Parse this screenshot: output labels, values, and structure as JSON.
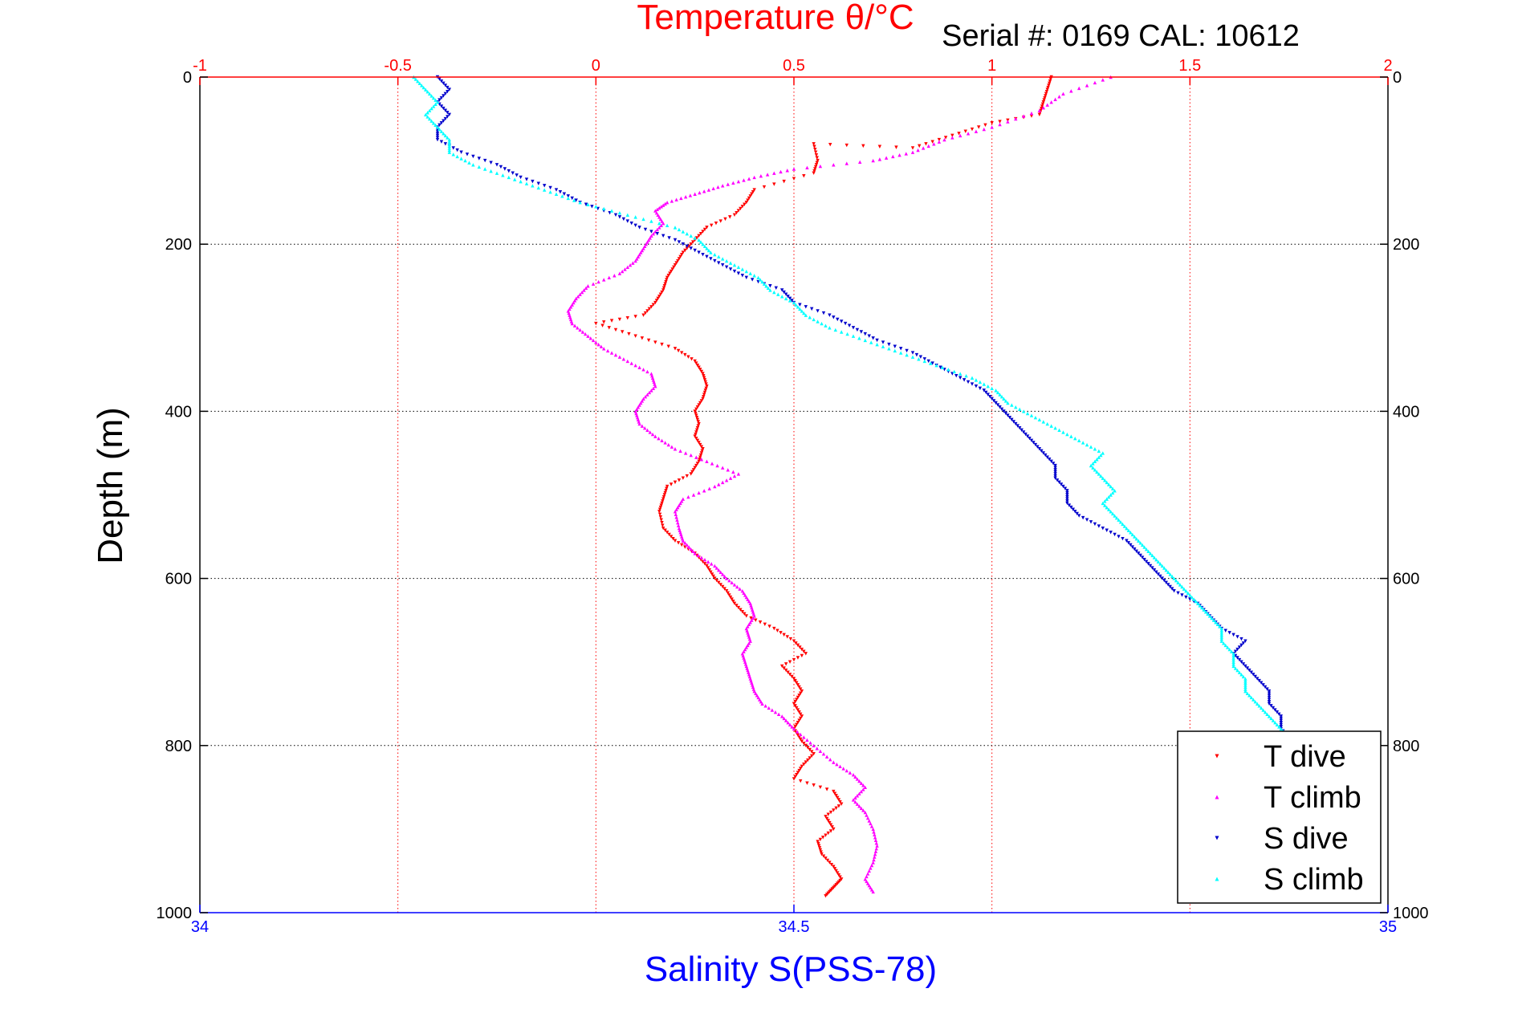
{
  "chart_data": {
    "type": "scatter",
    "serial_label": "Serial #: 0169 CAL: 10612",
    "title_top": "Temperature θ/°C",
    "xlabel_bottom": "Salinity S(PSS-78)",
    "ylabel": "Depth (m)",
    "x_top": {
      "range": [
        -1,
        2
      ],
      "ticks": [
        "-1",
        "-0.5",
        "0",
        "0.5",
        "1",
        "1.5",
        "2"
      ],
      "color": "#ff0000"
    },
    "x_bottom": {
      "range": [
        34,
        35
      ],
      "ticks": [
        "34",
        "34.5",
        "35"
      ],
      "color": "#0000ff"
    },
    "y": {
      "range": [
        0,
        1000
      ],
      "reversed": true,
      "ticks": [
        "0",
        "200",
        "400",
        "600",
        "800",
        "1000"
      ]
    },
    "grid": true,
    "legend_position": "bottom-right",
    "series": [
      {
        "name": "T dive",
        "color": "#ff0000",
        "marker": "triangle-down",
        "axis": "temperature",
        "points": [
          [
            1.15,
            0
          ],
          [
            1.14,
            15
          ],
          [
            1.13,
            30
          ],
          [
            1.12,
            45
          ],
          [
            1.0,
            55
          ],
          [
            0.9,
            70
          ],
          [
            0.8,
            85
          ],
          [
            0.55,
            80
          ],
          [
            0.56,
            100
          ],
          [
            0.55,
            115
          ],
          [
            0.4,
            135
          ],
          [
            0.38,
            150
          ],
          [
            0.35,
            165
          ],
          [
            0.28,
            180
          ],
          [
            0.25,
            195
          ],
          [
            0.22,
            210
          ],
          [
            0.2,
            225
          ],
          [
            0.18,
            240
          ],
          [
            0.17,
            255
          ],
          [
            0.15,
            270
          ],
          [
            0.12,
            285
          ],
          [
            0.0,
            295
          ],
          [
            0.1,
            310
          ],
          [
            0.2,
            325
          ],
          [
            0.25,
            340
          ],
          [
            0.27,
            355
          ],
          [
            0.28,
            370
          ],
          [
            0.27,
            385
          ],
          [
            0.25,
            400
          ],
          [
            0.26,
            415
          ],
          [
            0.25,
            430
          ],
          [
            0.27,
            445
          ],
          [
            0.26,
            460
          ],
          [
            0.24,
            475
          ],
          [
            0.18,
            490
          ],
          [
            0.17,
            505
          ],
          [
            0.16,
            520
          ],
          [
            0.17,
            540
          ],
          [
            0.2,
            555
          ],
          [
            0.25,
            570
          ],
          [
            0.28,
            585
          ],
          [
            0.3,
            600
          ],
          [
            0.33,
            615
          ],
          [
            0.35,
            630
          ],
          [
            0.38,
            645
          ],
          [
            0.45,
            660
          ],
          [
            0.5,
            675
          ],
          [
            0.53,
            690
          ],
          [
            0.47,
            705
          ],
          [
            0.5,
            720
          ],
          [
            0.52,
            735
          ],
          [
            0.5,
            750
          ],
          [
            0.52,
            765
          ],
          [
            0.5,
            780
          ],
          [
            0.52,
            795
          ],
          [
            0.55,
            810
          ],
          [
            0.52,
            825
          ],
          [
            0.5,
            840
          ],
          [
            0.6,
            855
          ],
          [
            0.62,
            870
          ],
          [
            0.58,
            885
          ],
          [
            0.6,
            900
          ],
          [
            0.56,
            915
          ],
          [
            0.57,
            930
          ],
          [
            0.6,
            945
          ],
          [
            0.62,
            960
          ],
          [
            0.6,
            970
          ],
          [
            0.58,
            980
          ]
        ]
      },
      {
        "name": "T climb",
        "color": "#ff00ff",
        "marker": "triangle-up",
        "axis": "temperature",
        "points": [
          [
            1.3,
            0
          ],
          [
            1.18,
            20
          ],
          [
            1.12,
            40
          ],
          [
            1.0,
            60
          ],
          [
            0.88,
            75
          ],
          [
            0.8,
            90
          ],
          [
            0.7,
            100
          ],
          [
            0.5,
            110
          ],
          [
            0.4,
            120
          ],
          [
            0.32,
            130
          ],
          [
            0.25,
            140
          ],
          [
            0.18,
            150
          ],
          [
            0.15,
            160
          ],
          [
            0.17,
            175
          ],
          [
            0.14,
            190
          ],
          [
            0.12,
            205
          ],
          [
            0.1,
            220
          ],
          [
            0.06,
            235
          ],
          [
            -0.02,
            250
          ],
          [
            -0.05,
            265
          ],
          [
            -0.07,
            280
          ],
          [
            -0.06,
            295
          ],
          [
            -0.02,
            310
          ],
          [
            0.02,
            325
          ],
          [
            0.08,
            340
          ],
          [
            0.14,
            355
          ],
          [
            0.15,
            370
          ],
          [
            0.12,
            385
          ],
          [
            0.1,
            400
          ],
          [
            0.11,
            415
          ],
          [
            0.15,
            430
          ],
          [
            0.2,
            445
          ],
          [
            0.28,
            460
          ],
          [
            0.36,
            475
          ],
          [
            0.3,
            490
          ],
          [
            0.22,
            505
          ],
          [
            0.2,
            520
          ],
          [
            0.21,
            540
          ],
          [
            0.22,
            555
          ],
          [
            0.25,
            570
          ],
          [
            0.3,
            585
          ],
          [
            0.33,
            600
          ],
          [
            0.37,
            615
          ],
          [
            0.39,
            630
          ],
          [
            0.4,
            645
          ],
          [
            0.38,
            660
          ],
          [
            0.39,
            675
          ],
          [
            0.37,
            690
          ],
          [
            0.38,
            705
          ],
          [
            0.39,
            720
          ],
          [
            0.4,
            735
          ],
          [
            0.42,
            750
          ],
          [
            0.47,
            765
          ],
          [
            0.5,
            780
          ],
          [
            0.55,
            800
          ],
          [
            0.6,
            820
          ],
          [
            0.65,
            835
          ],
          [
            0.68,
            850
          ],
          [
            0.65,
            865
          ],
          [
            0.68,
            880
          ],
          [
            0.7,
            900
          ],
          [
            0.71,
            920
          ],
          [
            0.7,
            940
          ],
          [
            0.68,
            960
          ],
          [
            0.7,
            975
          ]
        ]
      },
      {
        "name": "S dive",
        "color": "#0000cc",
        "marker": "triangle-down",
        "axis": "salinity",
        "points": [
          [
            34.2,
            0
          ],
          [
            34.21,
            15
          ],
          [
            34.2,
            30
          ],
          [
            34.21,
            45
          ],
          [
            34.2,
            60
          ],
          [
            34.2,
            75
          ],
          [
            34.22,
            90
          ],
          [
            34.25,
            105
          ],
          [
            34.27,
            120
          ],
          [
            34.3,
            135
          ],
          [
            34.32,
            150
          ],
          [
            34.35,
            165
          ],
          [
            34.37,
            180
          ],
          [
            34.4,
            195
          ],
          [
            34.42,
            210
          ],
          [
            34.44,
            225
          ],
          [
            34.46,
            240
          ],
          [
            34.49,
            255
          ],
          [
            34.5,
            270
          ],
          [
            34.53,
            285
          ],
          [
            34.55,
            300
          ],
          [
            34.57,
            315
          ],
          [
            34.6,
            330
          ],
          [
            34.62,
            345
          ],
          [
            34.64,
            360
          ],
          [
            34.66,
            375
          ],
          [
            34.67,
            390
          ],
          [
            34.68,
            405
          ],
          [
            34.69,
            420
          ],
          [
            34.7,
            435
          ],
          [
            34.71,
            450
          ],
          [
            34.72,
            465
          ],
          [
            34.72,
            480
          ],
          [
            34.73,
            495
          ],
          [
            34.73,
            510
          ],
          [
            34.74,
            525
          ],
          [
            34.76,
            540
          ],
          [
            34.78,
            555
          ],
          [
            34.79,
            570
          ],
          [
            34.8,
            585
          ],
          [
            34.81,
            600
          ],
          [
            34.82,
            615
          ],
          [
            34.84,
            630
          ],
          [
            34.85,
            645
          ],
          [
            34.86,
            660
          ],
          [
            34.88,
            675
          ],
          [
            34.87,
            690
          ],
          [
            34.88,
            705
          ],
          [
            34.89,
            720
          ],
          [
            34.9,
            735
          ],
          [
            34.9,
            750
          ],
          [
            34.91,
            765
          ],
          [
            34.91,
            780
          ],
          [
            34.92,
            795
          ],
          [
            34.92,
            810
          ],
          [
            34.93,
            825
          ],
          [
            34.93,
            840
          ],
          [
            34.94,
            855
          ],
          [
            34.94,
            870
          ],
          [
            34.95,
            885
          ],
          [
            34.95,
            900
          ],
          [
            34.96,
            915
          ],
          [
            34.96,
            930
          ],
          [
            34.96,
            945
          ],
          [
            34.97,
            960
          ],
          [
            34.97,
            975
          ]
        ]
      },
      {
        "name": "S climb",
        "color": "#00ffff",
        "marker": "triangle-up",
        "axis": "salinity",
        "points": [
          [
            34.18,
            0
          ],
          [
            34.19,
            15
          ],
          [
            34.2,
            30
          ],
          [
            34.19,
            45
          ],
          [
            34.2,
            60
          ],
          [
            34.21,
            75
          ],
          [
            34.21,
            90
          ],
          [
            34.23,
            105
          ],
          [
            34.26,
            120
          ],
          [
            34.29,
            135
          ],
          [
            34.32,
            150
          ],
          [
            34.36,
            165
          ],
          [
            34.4,
            180
          ],
          [
            34.42,
            195
          ],
          [
            34.43,
            210
          ],
          [
            34.45,
            225
          ],
          [
            34.47,
            240
          ],
          [
            34.48,
            255
          ],
          [
            34.5,
            270
          ],
          [
            34.51,
            285
          ],
          [
            34.53,
            300
          ],
          [
            34.56,
            315
          ],
          [
            34.59,
            330
          ],
          [
            34.62,
            345
          ],
          [
            34.65,
            360
          ],
          [
            34.67,
            375
          ],
          [
            34.68,
            390
          ],
          [
            34.7,
            405
          ],
          [
            34.72,
            420
          ],
          [
            34.74,
            435
          ],
          [
            34.76,
            450
          ],
          [
            34.75,
            465
          ],
          [
            34.76,
            480
          ],
          [
            34.77,
            495
          ],
          [
            34.76,
            510
          ],
          [
            34.77,
            525
          ],
          [
            34.78,
            540
          ],
          [
            34.79,
            555
          ],
          [
            34.8,
            570
          ],
          [
            34.81,
            585
          ],
          [
            34.82,
            600
          ],
          [
            34.83,
            615
          ],
          [
            34.84,
            630
          ],
          [
            34.85,
            645
          ],
          [
            34.86,
            660
          ],
          [
            34.86,
            675
          ],
          [
            34.87,
            690
          ],
          [
            34.87,
            705
          ],
          [
            34.88,
            720
          ],
          [
            34.88,
            735
          ],
          [
            34.89,
            750
          ],
          [
            34.9,
            765
          ],
          [
            34.91,
            780
          ],
          [
            34.92,
            795
          ],
          [
            34.93,
            810
          ],
          [
            34.94,
            825
          ],
          [
            34.95,
            840
          ],
          [
            34.95,
            855
          ],
          [
            34.95,
            870
          ],
          [
            34.96,
            885
          ],
          [
            34.96,
            900
          ],
          [
            34.97,
            915
          ],
          [
            34.97,
            930
          ],
          [
            34.98,
            945
          ],
          [
            34.98,
            960
          ],
          [
            34.98,
            975
          ]
        ]
      }
    ]
  }
}
